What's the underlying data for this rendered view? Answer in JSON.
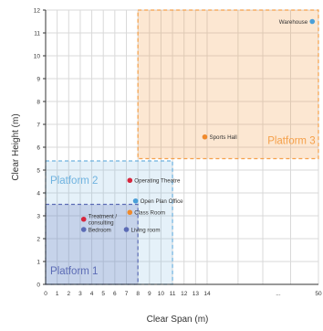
{
  "chart_data": {
    "type": "scatter",
    "title": "",
    "xlabel": "Clear Span (m)",
    "ylabel": "Clear Height (m)",
    "x_ticks": [
      "0",
      "1",
      "2",
      "3",
      "4",
      "5",
      "6",
      "7",
      "8",
      "9",
      "10",
      "11",
      "12",
      "13",
      "14",
      "...",
      "50"
    ],
    "y_ticks": [
      "0",
      "1",
      "2",
      "3",
      "4",
      "5",
      "6",
      "7",
      "8",
      "9",
      "10",
      "11",
      "12"
    ],
    "xlim": [
      0,
      50
    ],
    "ylim": [
      0,
      12
    ],
    "x_axis_break": "...",
    "grid": true,
    "platforms": [
      {
        "name": "Platform 1",
        "x_range": [
          0,
          8
        ],
        "y_range": [
          0,
          3.5
        ],
        "color": "#5b6bb5"
      },
      {
        "name": "Platform 2",
        "x_range": [
          0,
          11
        ],
        "y_range": [
          0,
          5.4
        ],
        "color": "#6fb3e0"
      },
      {
        "name": "Platform 3",
        "x_range": [
          8,
          50
        ],
        "y_range": [
          5.5,
          12
        ],
        "color": "#f5a04a"
      }
    ],
    "points": [
      {
        "label": "Warehouse",
        "x": 48,
        "y": 11.5,
        "color": "#4a9fd8"
      },
      {
        "label": "Sports Hall",
        "x": 13.8,
        "y": 6.45,
        "color": "#f08a2c"
      },
      {
        "label": "Operating Theatre",
        "x": 7.3,
        "y": 4.55,
        "color": "#d7263d"
      },
      {
        "label": "Open Plan Office",
        "x": 7.8,
        "y": 3.65,
        "color": "#4a9fd8"
      },
      {
        "label": "Class Room",
        "x": 7.3,
        "y": 3.15,
        "color": "#f08a2c"
      },
      {
        "label": "Treatment /\nconsulting",
        "x": 3.3,
        "y": 2.85,
        "color": "#d7263d"
      },
      {
        "label": "Bedroom",
        "x": 3.3,
        "y": 2.4,
        "color": "#5b6bb5"
      },
      {
        "label": "Living room",
        "x": 7.0,
        "y": 2.4,
        "color": "#5b6bb5"
      }
    ]
  }
}
